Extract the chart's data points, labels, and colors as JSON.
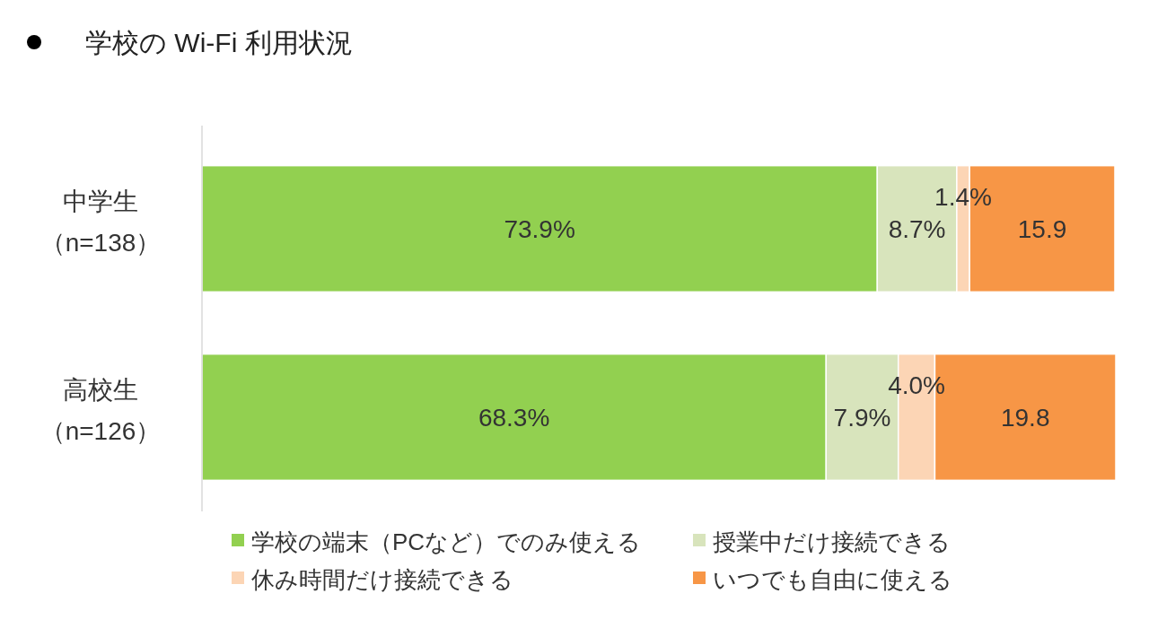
{
  "chart_data": {
    "type": "bar",
    "orientation": "horizontal",
    "stacked": true,
    "title": "学校の Wi-Fi 利用状況",
    "categories": [
      "中学生（n=138）",
      "高校生（n=126）"
    ],
    "xlim": [
      0,
      100
    ],
    "tick_labels": "y",
    "grid": false,
    "legend": "bottom",
    "series": [
      {
        "name": "学校の端末（PCなど）でのみ使える",
        "color": "#92d050",
        "values": [
          73.9,
          68.3
        ],
        "value_labels": [
          "73.9%",
          "68.3%"
        ]
      },
      {
        "name": "授業中だけ接続できる",
        "color": "#d8e4bc",
        "values": [
          8.7,
          7.9
        ],
        "value_labels": [
          "8.7%",
          "7.9%"
        ]
      },
      {
        "name": "休み時間だけ接続できる",
        "color": "#fcd5b5",
        "values": [
          1.4,
          4.0
        ],
        "value_labels": [
          "1.4%",
          "4.0%"
        ]
      },
      {
        "name": "いつでも自由に使える",
        "color": "#f79646",
        "values": [
          15.9,
          19.8
        ],
        "value_labels": [
          "15.9",
          "19.8"
        ]
      }
    ]
  }
}
